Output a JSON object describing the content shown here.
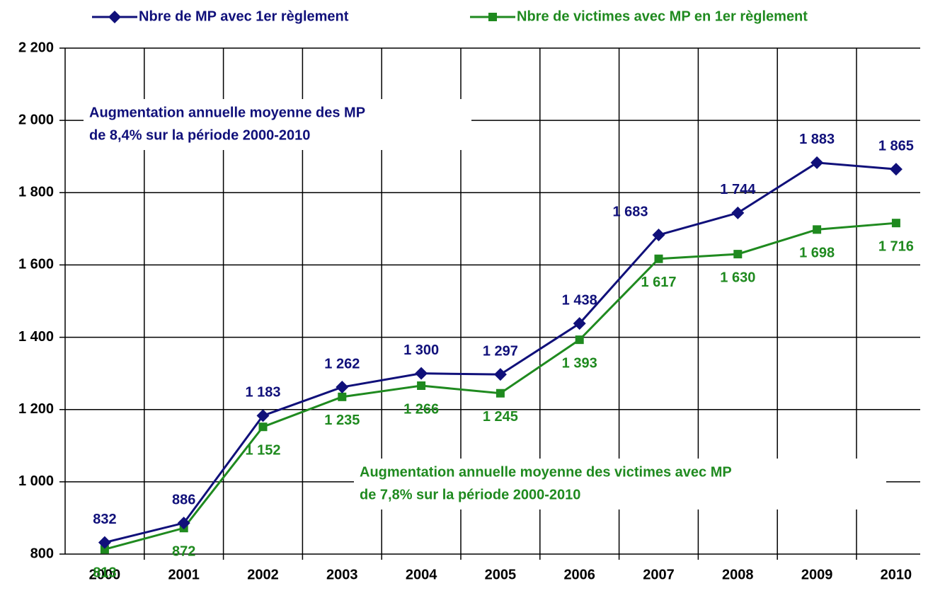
{
  "chart_data": {
    "type": "line",
    "categories": [
      "2000",
      "2001",
      "2002",
      "2003",
      "2004",
      "2005",
      "2006",
      "2007",
      "2008",
      "2009",
      "2010"
    ],
    "series": [
      {
        "name": "Nbre de MP avec 1er règlement",
        "color": "#10107a",
        "marker": "diamond",
        "values": [
          832,
          886,
          1183,
          1262,
          1300,
          1297,
          1438,
          1683,
          1744,
          1883,
          1865
        ],
        "value_labels": [
          "832",
          "886",
          "1 183",
          "1 262",
          "1 300",
          "1 297",
          "1 438",
          "1 683",
          "1 744",
          "1 883",
          "1 865"
        ]
      },
      {
        "name": "Nbre de victimes avec MP en 1er règlement",
        "color": "#1f8a1f",
        "marker": "square",
        "values": [
          813,
          872,
          1152,
          1235,
          1266,
          1245,
          1393,
          1617,
          1630,
          1698,
          1716
        ],
        "value_labels": [
          "813",
          "872",
          "1 152",
          "1 235",
          "1 266",
          "1 245",
          "1 393",
          "1 617",
          "1 630",
          "1 698",
          "1 716"
        ]
      }
    ],
    "ylim": [
      800,
      2200
    ],
    "yticks": [
      800,
      {
        "value": 1000,
        "label": "1 000"
      },
      {
        "value": 1200,
        "label": "1 200"
      },
      {
        "value": 1400,
        "label": "1 400"
      },
      {
        "value": 1600,
        "label": "1 600"
      },
      {
        "value": 1800,
        "label": "1 800"
      },
      {
        "value": 2000,
        "label": "2 000"
      },
      {
        "value": 2200,
        "label": "2 200"
      }
    ],
    "grid": true,
    "legend": "top",
    "annotations": [
      {
        "lines": [
          "Augmentation annuelle moyenne des  MP",
          "de 8,4% sur la période 2000-2010"
        ],
        "color": "#10107a"
      },
      {
        "lines": [
          "Augmentation annuelle moyenne des victimes avec MP",
          "de 7,8% sur la période 2000-2010"
        ],
        "color": "#1f8a1f"
      }
    ]
  }
}
